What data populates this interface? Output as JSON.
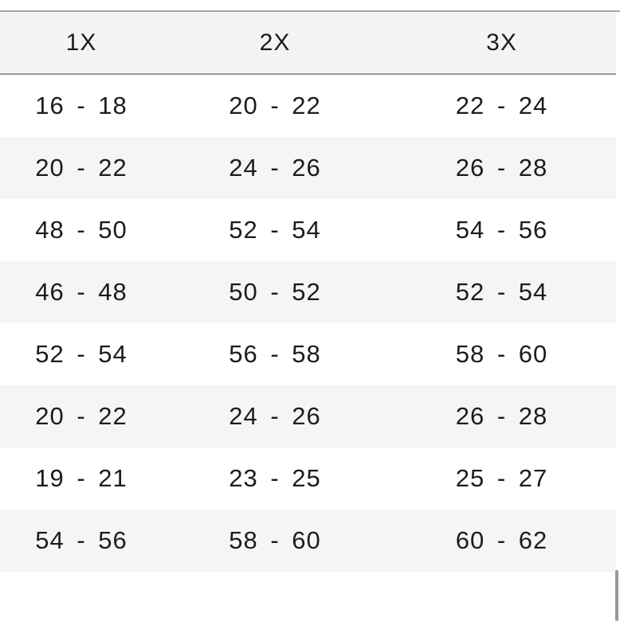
{
  "table": {
    "headers": [
      "1X",
      "2X",
      "3X"
    ],
    "rows": [
      [
        "16 - 18",
        "20 - 22",
        "22 - 24"
      ],
      [
        "20 - 22",
        "24 - 26",
        "26 - 28"
      ],
      [
        "48 - 50",
        "52 - 54",
        "54 - 56"
      ],
      [
        "46 - 48",
        "50 - 52",
        "52 - 54"
      ],
      [
        "52 - 54",
        "56 - 58",
        "58 - 60"
      ],
      [
        "20 - 22",
        "24 - 26",
        "26 - 28"
      ],
      [
        "19 - 21",
        "23 - 25",
        "25 - 27"
      ],
      [
        "54 - 56",
        "58 - 60",
        "60 - 62"
      ]
    ]
  },
  "colors": {
    "header_background": "#f4f4f4",
    "alternate_row_background": "#f5f5f5",
    "top_rule": "#a4a4a4",
    "header_rule": "#959595",
    "text": "#1c1c1c",
    "scrollbar_thumb": "#999999"
  },
  "chart_data": {
    "type": "table",
    "columns": [
      "1X",
      "2X",
      "3X"
    ],
    "rows": [
      [
        "16 - 18",
        "20 - 22",
        "22 - 24"
      ],
      [
        "20 - 22",
        "24 - 26",
        "26 - 28"
      ],
      [
        "48 - 50",
        "52 - 54",
        "54 - 56"
      ],
      [
        "46 - 48",
        "50 - 52",
        "52 - 54"
      ],
      [
        "52 - 54",
        "56 - 58",
        "58 - 60"
      ],
      [
        "20 - 22",
        "24 - 26",
        "26 - 28"
      ],
      [
        "19 - 21",
        "23 - 25",
        "25 - 27"
      ],
      [
        "54 - 56",
        "58 - 60",
        "60 - 62"
      ]
    ]
  }
}
